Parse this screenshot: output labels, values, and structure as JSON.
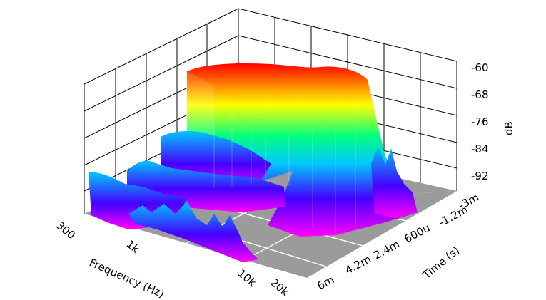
{
  "chart_data": {
    "type": "waterfall-3d",
    "z_axis": {
      "label": "dB",
      "ticks": [
        "-60",
        "-68",
        "-76",
        "-84",
        "-92"
      ],
      "range": [
        -100,
        -60
      ]
    },
    "x_axis": {
      "label": "Frequency (Hz)",
      "ticks": [
        "300",
        "1k",
        "10k",
        "20k"
      ],
      "scale": "log"
    },
    "y_axis": {
      "label": "Time (s)",
      "ticks": [
        "-3m",
        "-1.2m",
        "600u",
        "2.4m",
        "4.2m",
        "6m"
      ],
      "range": [
        "-3m",
        "6m"
      ]
    },
    "grid": true,
    "colormap": [
      "#ff00ff",
      "#4400ff",
      "#00c8ff",
      "#00ff80",
      "#ffff00",
      "#ff0000"
    ],
    "floor_color": "#9b9b9b"
  }
}
